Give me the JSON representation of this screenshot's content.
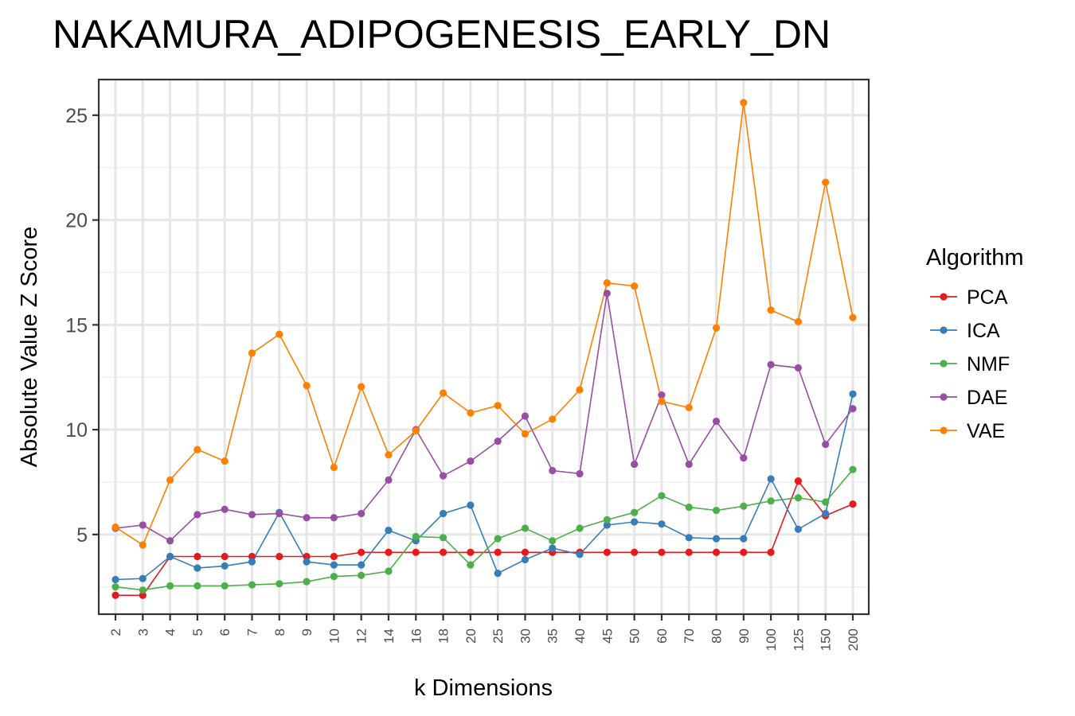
{
  "chart_data": {
    "type": "line",
    "title": "NAKAMURA_ADIPOGENESIS_EARLY_DN",
    "xlabel": "k Dimensions",
    "ylabel": "Absolute Value Z Score",
    "categories": [
      "2",
      "3",
      "4",
      "5",
      "6",
      "7",
      "8",
      "9",
      "10",
      "12",
      "14",
      "16",
      "18",
      "20",
      "25",
      "30",
      "35",
      "40",
      "45",
      "50",
      "60",
      "70",
      "80",
      "90",
      "100",
      "125",
      "150",
      "200"
    ],
    "y_ticks": [
      5,
      10,
      15,
      20,
      25
    ],
    "ylim": [
      1.2,
      26.7
    ],
    "grid": true,
    "legend": {
      "title": "Algorithm",
      "position": "right"
    },
    "series": [
      {
        "name": "PCA",
        "color": "#e41a1c",
        "values": [
          2.1,
          2.1,
          3.95,
          3.95,
          3.95,
          3.95,
          3.95,
          3.95,
          3.95,
          4.15,
          4.15,
          4.15,
          4.15,
          4.15,
          4.15,
          4.15,
          4.15,
          4.15,
          4.15,
          4.15,
          4.15,
          4.15,
          4.15,
          4.15,
          4.15,
          7.55,
          5.9,
          6.45
        ]
      },
      {
        "name": "ICA",
        "color": "#377eb8",
        "values": [
          2.85,
          2.9,
          3.95,
          3.4,
          3.5,
          3.7,
          6.05,
          3.7,
          3.55,
          3.55,
          5.2,
          4.7,
          6.0,
          6.4,
          3.15,
          3.8,
          4.35,
          4.05,
          5.45,
          5.6,
          5.5,
          4.85,
          4.8,
          4.8,
          7.65,
          5.25,
          6.0,
          11.7
        ]
      },
      {
        "name": "NMF",
        "color": "#4daf4a",
        "values": [
          2.5,
          2.35,
          2.55,
          2.55,
          2.55,
          2.6,
          2.65,
          2.75,
          3.0,
          3.05,
          3.25,
          4.9,
          4.85,
          3.55,
          4.8,
          5.3,
          4.7,
          5.3,
          5.7,
          6.05,
          6.85,
          6.3,
          6.15,
          6.35,
          6.6,
          6.75,
          6.55,
          8.1
        ]
      },
      {
        "name": "DAE",
        "color": "#984ea3",
        "values": [
          5.3,
          5.45,
          4.7,
          5.95,
          6.2,
          5.95,
          6.0,
          5.8,
          5.8,
          6.0,
          7.6,
          10.0,
          7.8,
          8.5,
          9.45,
          10.65,
          8.05,
          7.9,
          16.5,
          8.35,
          11.65,
          8.35,
          10.4,
          8.65,
          13.1,
          12.95,
          9.3,
          11.0
        ]
      },
      {
        "name": "VAE",
        "color": "#ff7f00",
        "values": [
          5.35,
          4.5,
          7.6,
          9.05,
          8.5,
          13.65,
          14.55,
          12.1,
          8.2,
          12.05,
          8.8,
          9.95,
          11.75,
          10.8,
          11.15,
          9.8,
          10.5,
          11.9,
          17.0,
          16.85,
          11.35,
          11.05,
          14.85,
          25.6,
          15.7,
          15.15,
          21.8,
          15.35
        ]
      }
    ]
  }
}
